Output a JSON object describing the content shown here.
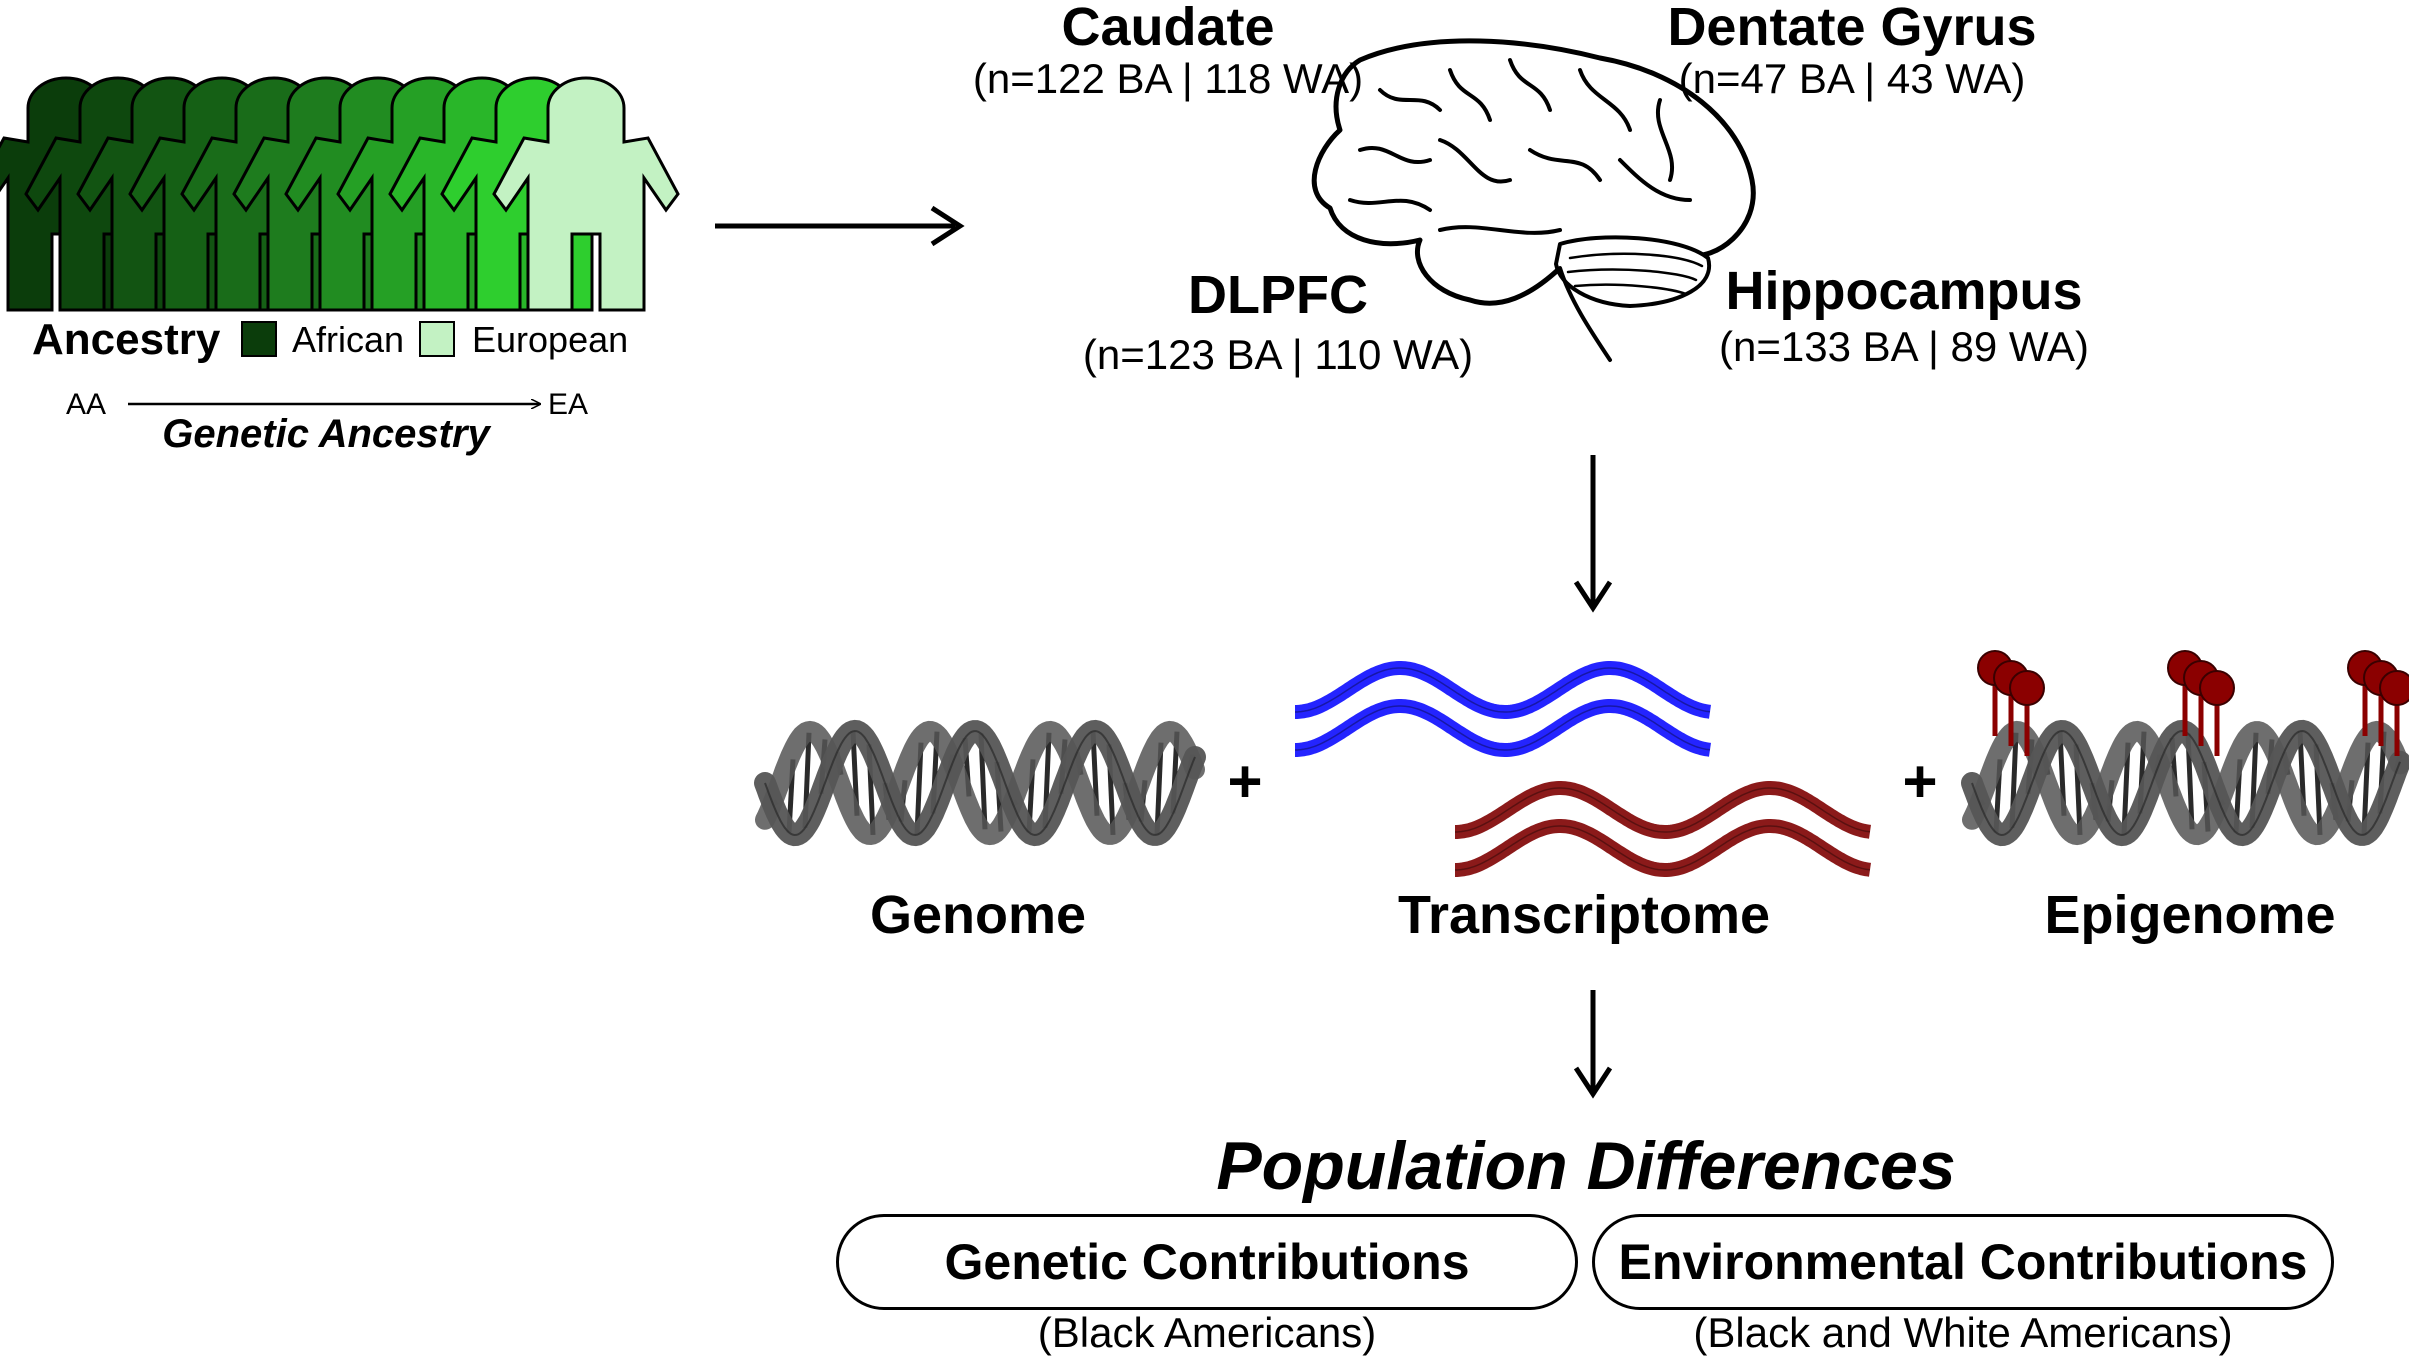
{
  "ancestry": {
    "legend_title": "Ancestry",
    "african_label": "African",
    "european_label": "European",
    "axis_start": "AA",
    "axis_end": "EA",
    "axis_title": "Genetic Ancestry",
    "colors": [
      "#0b3d0b",
      "#0e480e",
      "#125412",
      "#156015",
      "#196c19",
      "#1e7c1e",
      "#218c21",
      "#25a025",
      "#29b629",
      "#2ece2e",
      "#c3f2c3"
    ],
    "african_color": "#0b3d0b",
    "european_color": "#c3f2c3"
  },
  "brain_regions": [
    {
      "name": "Caudate",
      "counts": "(n=122 BA | 118 WA)"
    },
    {
      "name": "Dentate Gyrus",
      "counts": "(n=47 BA | 43 WA)"
    },
    {
      "name": "DLPFC",
      "counts": "(n=123 BA | 110 WA)"
    },
    {
      "name": "Hippocampus",
      "counts": "(n=133 BA | 89 WA)"
    }
  ],
  "omics": {
    "genome": "Genome",
    "transcriptome": "Transcriptome",
    "epigenome": "Epigenome",
    "plus": "+"
  },
  "outcome": {
    "title": "Population Differences",
    "genetic_label": "Genetic Contributions",
    "genetic_sub": "(Black Americans)",
    "environmental_label": "Environmental Contributions",
    "environmental_sub": "(Black and White Americans)"
  },
  "colors": {
    "dna": "#555555",
    "rna_blue": "#2424ff",
    "rna_red": "#8b1a1a",
    "methyl": "#8b0000"
  }
}
